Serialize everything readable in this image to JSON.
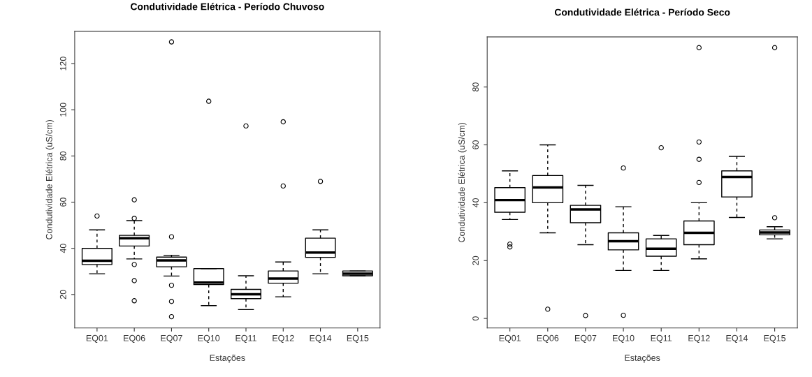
{
  "chart_data": [
    {
      "type": "box",
      "title": "Condutividade Elétrica - Período Chuvoso",
      "xlabel": "Estações",
      "ylabel": "Condutividade Elétrica (uS/cm)",
      "categories": [
        "EQ01",
        "EQ06",
        "EQ07",
        "EQ10",
        "EQ11",
        "EQ12",
        "EQ14",
        "EQ15"
      ],
      "ylim": [
        5.5,
        134
      ],
      "yticks": [
        20,
        40,
        60,
        80,
        100,
        120
      ],
      "grid": false,
      "color": "#000000",
      "boxes": [
        {
          "low": 29,
          "q1": 33,
          "median": 34.6,
          "q3": 40,
          "high": 48,
          "outliers": [
            54
          ]
        },
        {
          "low": 35.4,
          "q1": 41,
          "median": 44.4,
          "q3": 45.6,
          "high": 52,
          "outliers": [
            61,
            53,
            33,
            26,
            17.3
          ]
        },
        {
          "low": 28,
          "q1": 32,
          "median": 34.8,
          "q3": 36.2,
          "high": 37,
          "outliers": [
            129.4,
            45,
            24,
            17,
            10.4
          ]
        },
        {
          "low": 15.2,
          "q1": 24.3,
          "median": 25.2,
          "q3": 31.2,
          "high": 31.2,
          "outliers": [
            103.7
          ]
        },
        {
          "low": 13.5,
          "q1": 18.2,
          "median": 20.1,
          "q3": 22.2,
          "high": 28.1,
          "outliers": [
            93
          ]
        },
        {
          "low": 19,
          "q1": 24.9,
          "median": 26.9,
          "q3": 30.2,
          "high": 34.1,
          "outliers": [
            94.8,
            67
          ]
        },
        {
          "low": 29,
          "q1": 36.1,
          "median": 38.2,
          "q3": 44.4,
          "high": 48,
          "outliers": [
            69
          ]
        },
        {
          "low": 28.1,
          "q1": 28.1,
          "median": 29,
          "q3": 30.2,
          "high": 30.2
        }
      ]
    },
    {
      "type": "box",
      "title": "Condutividade Elétrica - Período Seco",
      "xlabel": "Estações",
      "ylabel": "Condutividade Elétrica (uS/cm)",
      "categories": [
        "EQ01",
        "EQ06",
        "EQ07",
        "EQ10",
        "EQ11",
        "EQ12",
        "EQ14",
        "EQ15"
      ],
      "ylim": [
        -3.3,
        97.3
      ],
      "yticks": [
        0,
        20,
        40,
        60,
        80
      ],
      "grid": false,
      "color": "#000000",
      "boxes": [
        {
          "low": 34.2,
          "q1": 36.7,
          "median": 40.9,
          "q3": 45.2,
          "high": 51,
          "outliers": [
            25.7,
            24.7
          ]
        },
        {
          "low": 29.6,
          "q1": 40,
          "median": 45.3,
          "q3": 49.4,
          "high": 60,
          "outliers": [
            3.2
          ]
        },
        {
          "low": 25.5,
          "q1": 33.1,
          "median": 37.7,
          "q3": 39.1,
          "high": 46,
          "outliers": [
            1
          ]
        },
        {
          "low": 16.6,
          "q1": 23.7,
          "median": 26.7,
          "q3": 29.6,
          "high": 38.6,
          "outliers": [
            52,
            1.1
          ]
        },
        {
          "low": 16.6,
          "q1": 21.5,
          "median": 24.1,
          "q3": 27.5,
          "high": 28.7,
          "outliers": [
            59
          ]
        },
        {
          "low": 20.6,
          "q1": 25.5,
          "median": 29.6,
          "q3": 33.7,
          "high": 40,
          "outliers": [
            93.6,
            61,
            55,
            47
          ]
        },
        {
          "low": 34.9,
          "q1": 42,
          "median": 48.9,
          "q3": 51,
          "high": 56
        },
        {
          "low": 27.5,
          "q1": 28.9,
          "median": 29.7,
          "q3": 30.6,
          "high": 31.7,
          "outliers": [
            93.6,
            34.8
          ]
        }
      ]
    }
  ]
}
